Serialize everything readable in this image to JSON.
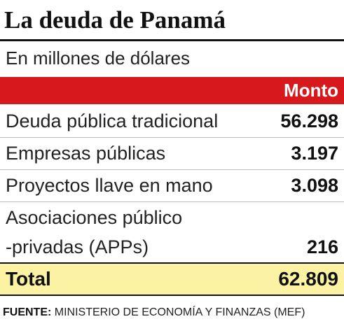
{
  "title": "La deuda de Panamá",
  "subtitle": "En millones de dólares",
  "colors": {
    "header_bar": "#d7191e",
    "header_text": "#ffffff",
    "total_bar": "#fbf2a3",
    "text": "#111111"
  },
  "chart_data": {
    "type": "table",
    "title": "La deuda de Panamá",
    "subtitle": "En millones de dólares",
    "columns": [
      "",
      "Monto"
    ],
    "rows": [
      {
        "label": "Deuda pública tradicional",
        "value": "56.298"
      },
      {
        "label": "Empresas públicas",
        "value": "3.197"
      },
      {
        "label": "Proyectos llave en mano",
        "value": "3.098"
      },
      {
        "label_line1": "Asociaciones público",
        "label_line2": "-privadas (APPs)",
        "value": "216"
      }
    ],
    "total": {
      "label": "Total",
      "value": "62.809"
    }
  },
  "source": {
    "label": "FUENTE:",
    "text": " MINISTERIO DE ECONOMÍA Y FINANZAS (MEF)"
  }
}
